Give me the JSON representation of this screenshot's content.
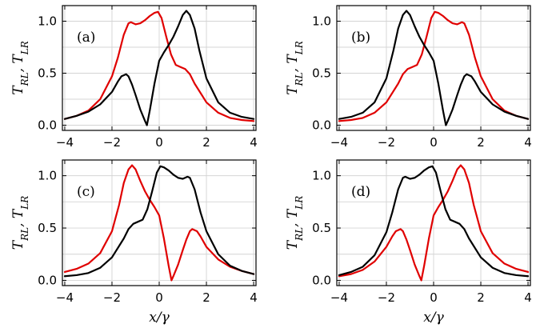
{
  "chart_data": [
    {
      "type": "line",
      "panel_label": "(a)",
      "ylabel": "T_RL, T_LR",
      "xlabel": "",
      "xlim": [
        -4.1,
        4.1
      ],
      "ylim": [
        -0.05,
        1.15
      ],
      "xticks": [
        "−4",
        "−2",
        "0",
        "2",
        "4"
      ],
      "yticks": [
        "0.0",
        "0.5",
        "1.0"
      ],
      "grid": true,
      "series": [
        {
          "color": "#e00000",
          "x": [
            -4,
            -3.5,
            -3,
            -2.5,
            -2,
            -1.75,
            -1.5,
            -1.3,
            -1.2,
            -1,
            -0.8,
            -0.6,
            -0.4,
            -0.2,
            -0.05,
            0.1,
            0.3,
            0.5,
            0.7,
            0.9,
            1.1,
            1.3,
            1.5,
            2,
            2.5,
            3,
            3.5,
            4
          ],
          "y": [
            0.06,
            0.09,
            0.14,
            0.25,
            0.47,
            0.65,
            0.87,
            0.98,
            0.99,
            0.97,
            0.98,
            1.01,
            1.05,
            1.08,
            1.09,
            1.03,
            0.85,
            0.68,
            0.58,
            0.56,
            0.54,
            0.49,
            0.4,
            0.22,
            0.12,
            0.07,
            0.05,
            0.04
          ]
        },
        {
          "color": "#000000",
          "x": [
            -4,
            -3.5,
            -3,
            -2.5,
            -2,
            -1.75,
            -1.6,
            -1.4,
            -1.3,
            -1.15,
            -1,
            -0.8,
            -0.6,
            -0.52,
            -0.4,
            -0.2,
            0,
            0.2,
            0.4,
            0.6,
            0.8,
            1,
            1.15,
            1.3,
            1.5,
            1.7,
            2,
            2.5,
            3,
            3.5,
            4
          ],
          "y": [
            0.06,
            0.09,
            0.13,
            0.2,
            0.32,
            0.42,
            0.47,
            0.49,
            0.47,
            0.39,
            0.29,
            0.15,
            0.04,
            0.0,
            0.14,
            0.4,
            0.62,
            0.7,
            0.77,
            0.85,
            0.95,
            1.06,
            1.1,
            1.06,
            0.93,
            0.72,
            0.45,
            0.22,
            0.12,
            0.08,
            0.06
          ]
        }
      ]
    },
    {
      "type": "line",
      "panel_label": "(b)",
      "ylabel": "T_RL, T_LR",
      "xlabel": "",
      "xlim": [
        -4.1,
        4.1
      ],
      "ylim": [
        -0.05,
        1.15
      ],
      "xticks": [
        "−4",
        "−2",
        "0",
        "2",
        "4"
      ],
      "yticks": [
        "0.0",
        "0.5",
        "1.0"
      ],
      "grid": true,
      "series": [
        {
          "color": "#e00000",
          "x": [
            -4,
            -3.5,
            -3,
            -2.5,
            -2,
            -1.5,
            -1.3,
            -1.1,
            -0.9,
            -0.7,
            -0.5,
            -0.3,
            -0.1,
            0.05,
            0.2,
            0.4,
            0.6,
            0.8,
            1,
            1.2,
            1.3,
            1.5,
            1.75,
            2,
            2.5,
            3,
            3.5,
            4
          ],
          "y": [
            0.04,
            0.05,
            0.07,
            0.12,
            0.22,
            0.4,
            0.49,
            0.54,
            0.56,
            0.58,
            0.68,
            0.85,
            1.03,
            1.09,
            1.08,
            1.05,
            1.01,
            0.98,
            0.97,
            0.99,
            0.98,
            0.87,
            0.65,
            0.47,
            0.25,
            0.14,
            0.09,
            0.06
          ]
        },
        {
          "color": "#000000",
          "x": [
            -4,
            -3.5,
            -3,
            -2.5,
            -2,
            -1.7,
            -1.5,
            -1.3,
            -1.15,
            -1,
            -0.8,
            -0.6,
            -0.4,
            -0.2,
            0,
            0.2,
            0.4,
            0.52,
            0.6,
            0.8,
            1,
            1.15,
            1.3,
            1.4,
            1.6,
            1.75,
            2,
            2.5,
            3,
            3.5,
            4
          ],
          "y": [
            0.06,
            0.08,
            0.12,
            0.22,
            0.45,
            0.72,
            0.93,
            1.06,
            1.1,
            1.06,
            0.95,
            0.85,
            0.77,
            0.7,
            0.62,
            0.4,
            0.14,
            0.0,
            0.04,
            0.15,
            0.29,
            0.39,
            0.47,
            0.49,
            0.47,
            0.42,
            0.32,
            0.2,
            0.13,
            0.09,
            0.06
          ]
        }
      ]
    },
    {
      "type": "line",
      "panel_label": "(c)",
      "ylabel": "T_RL, T_LR",
      "xlabel": "x/γ",
      "xlim": [
        -4.1,
        4.1
      ],
      "ylim": [
        -0.05,
        1.15
      ],
      "xticks": [
        "−4",
        "−2",
        "0",
        "2",
        "4"
      ],
      "yticks": [
        "0.0",
        "0.5",
        "1.0"
      ],
      "grid": true,
      "series": [
        {
          "color": "#e00000",
          "x": [
            -4,
            -3.5,
            -3,
            -2.5,
            -2,
            -1.7,
            -1.5,
            -1.3,
            -1.15,
            -1,
            -0.8,
            -0.6,
            -0.4,
            -0.2,
            0,
            0.2,
            0.4,
            0.52,
            0.6,
            0.8,
            1,
            1.15,
            1.3,
            1.4,
            1.6,
            1.75,
            2,
            2.5,
            3,
            3.5,
            4
          ],
          "y": [
            0.08,
            0.11,
            0.16,
            0.26,
            0.47,
            0.72,
            0.93,
            1.06,
            1.1,
            1.06,
            0.95,
            0.85,
            0.77,
            0.7,
            0.62,
            0.4,
            0.14,
            0.0,
            0.04,
            0.15,
            0.29,
            0.39,
            0.47,
            0.49,
            0.47,
            0.42,
            0.32,
            0.2,
            0.13,
            0.09,
            0.06
          ]
        },
        {
          "color": "#000000",
          "x": [
            -4,
            -3.5,
            -3,
            -2.5,
            -2,
            -1.5,
            -1.3,
            -1.1,
            -0.9,
            -0.7,
            -0.5,
            -0.3,
            -0.1,
            0.05,
            0.2,
            0.4,
            0.6,
            0.8,
            1,
            1.2,
            1.3,
            1.5,
            1.75,
            2,
            2.5,
            3,
            3.5,
            4
          ],
          "y": [
            0.04,
            0.05,
            0.07,
            0.12,
            0.22,
            0.4,
            0.49,
            0.54,
            0.56,
            0.58,
            0.68,
            0.85,
            1.03,
            1.09,
            1.08,
            1.05,
            1.01,
            0.98,
            0.97,
            0.99,
            0.98,
            0.87,
            0.65,
            0.47,
            0.25,
            0.14,
            0.09,
            0.06
          ]
        }
      ]
    },
    {
      "type": "line",
      "panel_label": "(d)",
      "ylabel": "T_RL, T_LR",
      "xlabel": "x/γ",
      "xlim": [
        -4.1,
        4.1
      ],
      "ylim": [
        -0.05,
        1.15
      ],
      "xticks": [
        "−4",
        "−2",
        "0",
        "2",
        "4"
      ],
      "yticks": [
        "0.0",
        "0.5",
        "1.0"
      ],
      "grid": true,
      "series": [
        {
          "color": "#e00000",
          "x": [
            -4,
            -3.5,
            -3,
            -2.5,
            -2,
            -1.75,
            -1.6,
            -1.4,
            -1.3,
            -1.15,
            -1,
            -0.8,
            -0.6,
            -0.52,
            -0.4,
            -0.2,
            0,
            0.2,
            0.4,
            0.6,
            0.8,
            1,
            1.15,
            1.3,
            1.5,
            1.7,
            2,
            2.5,
            3,
            3.5,
            4
          ],
          "y": [
            0.04,
            0.06,
            0.1,
            0.18,
            0.32,
            0.42,
            0.47,
            0.49,
            0.47,
            0.39,
            0.29,
            0.15,
            0.04,
            0.0,
            0.14,
            0.4,
            0.62,
            0.7,
            0.77,
            0.85,
            0.95,
            1.06,
            1.1,
            1.06,
            0.93,
            0.72,
            0.47,
            0.26,
            0.16,
            0.11,
            0.08
          ]
        },
        {
          "color": "#000000",
          "x": [
            -4,
            -3.5,
            -3,
            -2.5,
            -2,
            -1.75,
            -1.5,
            -1.3,
            -1.2,
            -1,
            -0.8,
            -0.6,
            -0.4,
            -0.2,
            -0.05,
            0.1,
            0.3,
            0.5,
            0.7,
            0.9,
            1.1,
            1.3,
            1.5,
            2,
            2.5,
            3,
            3.5,
            4
          ],
          "y": [
            0.05,
            0.08,
            0.13,
            0.24,
            0.46,
            0.65,
            0.87,
            0.98,
            0.99,
            0.97,
            0.98,
            1.01,
            1.05,
            1.08,
            1.09,
            1.03,
            0.85,
            0.68,
            0.58,
            0.56,
            0.54,
            0.49,
            0.4,
            0.22,
            0.12,
            0.07,
            0.05,
            0.04
          ]
        }
      ]
    }
  ]
}
